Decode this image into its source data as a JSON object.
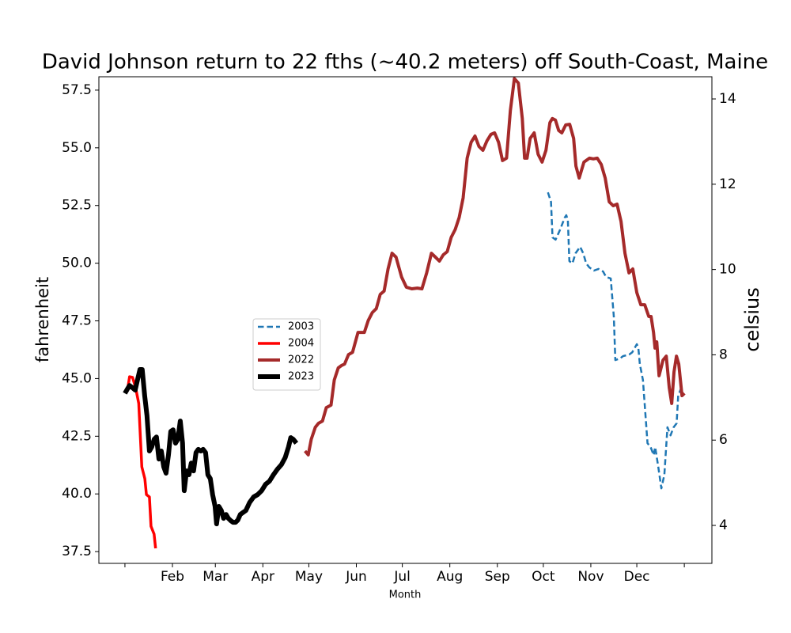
{
  "chart_data": {
    "type": "line",
    "title": "David Johnson return to 22 fths (~40.2 meters) off South-Coast, Maine",
    "xlabel": "Month",
    "ylabel": "fahrenheit",
    "y2label": "celsius",
    "xlim": [
      -16,
      384
    ],
    "xticks": [
      {
        "value": 1,
        "label": null
      },
      {
        "value": 32,
        "label": "Feb"
      },
      {
        "value": 60,
        "label": "Mar"
      },
      {
        "value": 91,
        "label": "Apr"
      },
      {
        "value": 121,
        "label": "May"
      },
      {
        "value": 152,
        "label": "Jun"
      },
      {
        "value": 182,
        "label": "Jul"
      },
      {
        "value": 213,
        "label": "Aug"
      },
      {
        "value": 244,
        "label": "Sep"
      },
      {
        "value": 274,
        "label": "Oct"
      },
      {
        "value": 305,
        "label": "Nov"
      },
      {
        "value": 335,
        "label": "Dec"
      },
      {
        "value": 366,
        "label": null
      }
    ],
    "ylim": [
      36.99,
      58.08
    ],
    "yticks": [
      37.5,
      {
        "value": 40,
        "label": "40.0"
      },
      42.5,
      {
        "value": 45,
        "label": "45.0"
      },
      47.5,
      {
        "value": 50,
        "label": "50.0"
      },
      52.5,
      {
        "value": 55,
        "label": "55.0"
      },
      57.5
    ],
    "y2lim": [
      3.11,
      14.52
    ],
    "y2ticks": [
      4,
      6,
      8,
      10,
      12,
      14
    ],
    "legend": "center left",
    "series": [
      {
        "name": "2003",
        "color": "#1f77b4",
        "linestyle": "dashed",
        "linewidth": 2.5,
        "x": [
          277,
          279,
          280,
          282,
          285,
          288,
          289,
          290,
          291,
          293,
          295,
          298,
          300,
          302,
          304,
          307,
          310,
          313,
          315,
          318,
          320,
          321,
          324,
          326,
          330,
          332,
          335,
          336,
          337,
          339,
          342,
          344,
          346,
          347,
          349,
          351,
          353,
          355,
          357,
          359,
          361,
          362,
          364
        ],
        "values": [
          53.07,
          52.66,
          51.12,
          51.02,
          51.46,
          51.98,
          52.08,
          51.87,
          50.09,
          49.99,
          50.43,
          50.71,
          50.43,
          49.99,
          49.82,
          49.68,
          49.75,
          49.64,
          49.4,
          49.34,
          47.69,
          45.8,
          45.87,
          45.97,
          46.04,
          46.14,
          46.49,
          46.32,
          45.63,
          44.94,
          42.2,
          42.03,
          41.68,
          42.03,
          41.17,
          40.24,
          40.83,
          42.89,
          42.54,
          42.89,
          43.06,
          44.26,
          44.6
        ]
      },
      {
        "name": "2004",
        "color": "#ff0000",
        "linestyle": "solid",
        "linewidth": 3.5,
        "x": [
          2.5,
          4,
          6,
          8,
          10,
          12,
          14,
          15,
          17,
          18,
          20,
          21
        ],
        "values": [
          44.43,
          45.08,
          45.05,
          44.6,
          43.92,
          41.17,
          40.66,
          39.97,
          39.87,
          38.6,
          38.26,
          37.64
        ]
      },
      {
        "name": "2022",
        "color": "#a52a2a",
        "linestyle": "solid",
        "linewidth": 4,
        "x": [
          118.5,
          120.6,
          122.6,
          125.2,
          127.3,
          129.9,
          132.4,
          135.5,
          137.6,
          140.2,
          142.2,
          144.3,
          146.9,
          149.5,
          153.1,
          157.2,
          159.8,
          162.4,
          165,
          167.6,
          170.1,
          172.7,
          175.3,
          177.9,
          181.5,
          184.6,
          188.2,
          191.8,
          194.8,
          197.9,
          201,
          203.6,
          206.2,
          208.7,
          211.3,
          213.9,
          216.5,
          219.1,
          221.7,
          224.3,
          226.9,
          229.4,
          232,
          234.6,
          237.2,
          239.8,
          242.2,
          244.8,
          247.4,
          250,
          252.5,
          255.1,
          257.7,
          260.3,
          261.8,
          263.4,
          265.4,
          268,
          270.6,
          273.2,
          275.7,
          278.3,
          279.9,
          281.9,
          284,
          286.1,
          288.6,
          291.2,
          293.8,
          295.3,
          297.4,
          300.5,
          304.1,
          306.7,
          309.2,
          311.8,
          314.4,
          317,
          319.6,
          322.1,
          324.7,
          327.3,
          329.9,
          332.4,
          335,
          337.6,
          340.2,
          342.8,
          344.3,
          345.9,
          346.9,
          348,
          349.5,
          352.1,
          354.2,
          356.2,
          357.8,
          359.3,
          360.9,
          362.4,
          364.5,
          366.1
        ],
        "values": [
          41.86,
          41.69,
          42.37,
          42.89,
          43.06,
          43.16,
          43.74,
          43.85,
          44.94,
          45.46,
          45.56,
          45.63,
          46.04,
          46.14,
          47.0,
          47.0,
          47.52,
          47.86,
          48.03,
          48.65,
          48.79,
          49.75,
          50.43,
          50.26,
          49.4,
          48.96,
          48.89,
          48.92,
          48.89,
          49.58,
          50.43,
          50.26,
          50.09,
          50.36,
          50.5,
          51.12,
          51.46,
          51.98,
          52.83,
          54.55,
          55.24,
          55.51,
          55.06,
          54.89,
          55.3,
          55.58,
          55.65,
          55.24,
          54.45,
          54.55,
          56.61,
          58.0,
          57.81,
          56.27,
          54.55,
          54.55,
          55.41,
          55.65,
          54.72,
          54.38,
          54.89,
          56.09,
          56.27,
          56.2,
          55.75,
          55.65,
          55.99,
          56.02,
          55.41,
          54.21,
          53.69,
          54.38,
          54.55,
          54.52,
          54.55,
          54.28,
          53.69,
          52.66,
          52.49,
          52.56,
          51.81,
          50.43,
          49.58,
          49.75,
          48.72,
          48.2,
          48.2,
          47.69,
          47.69,
          47.0,
          46.32,
          46.59,
          45.12,
          45.8,
          45.97,
          44.6,
          43.92,
          45.29,
          45.97,
          45.63,
          44.26,
          44.36
        ]
      },
      {
        "name": "2023",
        "color": "#000000",
        "linestyle": "solid",
        "linewidth": 6,
        "x": [
          1,
          2.5,
          4,
          6,
          7.7,
          9.2,
          10.8,
          12.3,
          13.9,
          15.4,
          17,
          18.5,
          20.1,
          21.6,
          23.2,
          24.7,
          26.3,
          27.8,
          29.4,
          30.9,
          32.4,
          34,
          35.5,
          37.1,
          38.6,
          39.7,
          41.2,
          42.8,
          44.3,
          45.8,
          47.4,
          48.9,
          50.5,
          52,
          53.6,
          55.1,
          56.7,
          58.2,
          59.8,
          60.8,
          62.3,
          63.9,
          65.4,
          67,
          68.5,
          70.1,
          71.6,
          73.2,
          74.7,
          76.3,
          77.8,
          79.9,
          82.4,
          85,
          87.6,
          90.2,
          92.8,
          95.3,
          97.9,
          100.5,
          103.1,
          105.6,
          107.7,
          109.2,
          110.8,
          112.9
        ],
        "values": [
          44.36,
          44.53,
          44.7,
          44.6,
          44.5,
          44.94,
          45.39,
          45.39,
          44.26,
          43.4,
          41.86,
          42.03,
          42.37,
          42.47,
          41.51,
          41.86,
          41.17,
          40.9,
          41.69,
          42.71,
          42.78,
          42.2,
          42.37,
          43.16,
          42.2,
          40.14,
          41.0,
          40.83,
          41.34,
          41.0,
          41.79,
          41.93,
          41.86,
          41.93,
          41.79,
          40.83,
          40.66,
          39.97,
          39.46,
          38.7,
          39.46,
          39.28,
          38.94,
          39.11,
          38.94,
          38.84,
          38.77,
          38.77,
          38.87,
          39.11,
          39.18,
          39.28,
          39.63,
          39.87,
          39.97,
          40.14,
          40.42,
          40.55,
          40.83,
          41.07,
          41.27,
          41.58,
          42.03,
          42.44,
          42.37,
          42.2
        ]
      }
    ]
  }
}
